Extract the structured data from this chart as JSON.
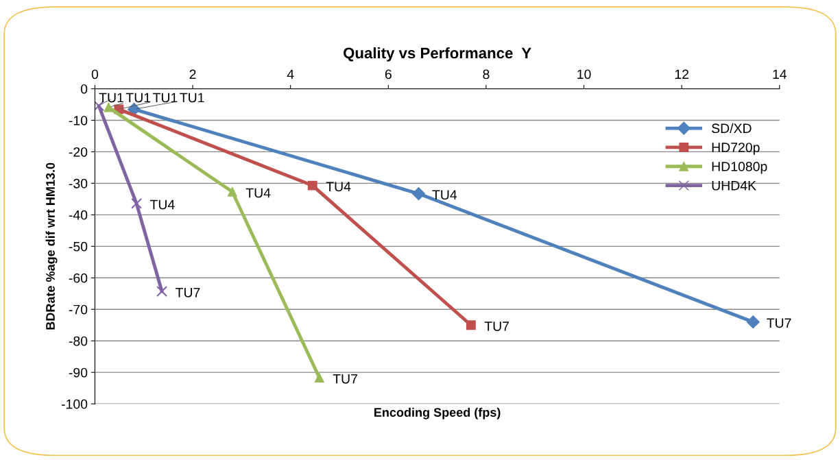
{
  "chart_data": {
    "type": "line",
    "title": "Quality vs Performance  Y",
    "xlabel": "Encoding Speed (fps)",
    "ylabel": "BDRate %age dif wrt HM13.0",
    "series": [
      {
        "name": "SD/XD",
        "color": "#4f81bd",
        "marker": "diamond",
        "x": [
          0.8,
          6.62,
          13.46
        ],
        "values": [
          -6.5,
          -33.3,
          -74
        ]
      },
      {
        "name": "HD720p",
        "color": "#c0504d",
        "marker": "square",
        "x": [
          0.49,
          4.45,
          7.69
        ],
        "values": [
          -6.5,
          -30.7,
          -75
        ]
      },
      {
        "name": "HD1080p",
        "color": "#9bbb59",
        "marker": "triangle",
        "x": [
          0.28,
          2.81,
          4.59
        ],
        "values": [
          -5.9,
          -32.7,
          -91.7
        ]
      },
      {
        "name": "UHD4K",
        "color": "#8064a2",
        "marker": "cross",
        "x": [
          0.08,
          0.85,
          1.37
        ],
        "values": [
          -5.4,
          -36.4,
          -64.3
        ]
      }
    ],
    "xlim": [
      0,
      14
    ],
    "xticks": [
      0,
      2,
      4,
      6,
      8,
      10,
      12,
      14
    ],
    "ylim": [
      -100,
      0
    ],
    "yticks": [
      0,
      -10,
      -20,
      -30,
      -40,
      -50,
      -60,
      -70,
      -80,
      -90,
      -100
    ],
    "grid": "y",
    "legend": "right",
    "annotations": [
      {
        "text": "TU1",
        "x": 0.8,
        "y": -6.5
      },
      {
        "text": "TU4",
        "x": 6.62,
        "y": -33.3
      },
      {
        "text": "TU7",
        "x": 13.46,
        "y": -74
      },
      {
        "text": "TU1",
        "x": 0.49,
        "y": -6.5
      },
      {
        "text": "TU4",
        "x": 4.45,
        "y": -30.7
      },
      {
        "text": "TU7",
        "x": 7.69,
        "y": -75
      },
      {
        "text": "TU1",
        "x": 0.28,
        "y": -5.9
      },
      {
        "text": "TU4",
        "x": 2.81,
        "y": -32.7
      },
      {
        "text": "TU7",
        "x": 4.59,
        "y": -91.7
      },
      {
        "text": "TU1",
        "x": 0.08,
        "y": -5.4
      },
      {
        "text": "TU4",
        "x": 0.85,
        "y": -36.4
      },
      {
        "text": "TU7",
        "x": 1.37,
        "y": -64.3
      }
    ]
  }
}
